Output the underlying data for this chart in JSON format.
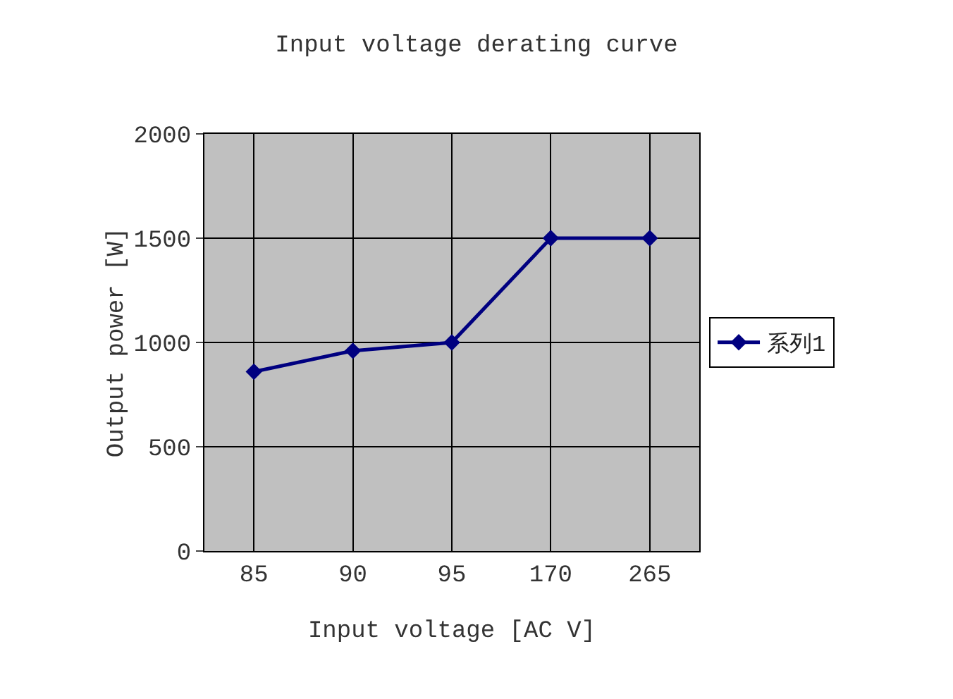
{
  "chart_data": {
    "type": "line",
    "title": "Input voltage derating curve",
    "xlabel": "Input voltage [AC V]",
    "ylabel": "Output power [W]",
    "categories": [
      "85",
      "90",
      "95",
      "170",
      "265"
    ],
    "series": [
      {
        "name": "系列1",
        "color": "#000080",
        "values": [
          860,
          960,
          1000,
          1500,
          1500
        ]
      }
    ],
    "ylim": [
      0,
      2000
    ],
    "yticks": [
      0,
      500,
      1000,
      1500,
      2000
    ],
    "grid": true,
    "legend": "right",
    "marker": "diamond",
    "line_style": "solid"
  }
}
